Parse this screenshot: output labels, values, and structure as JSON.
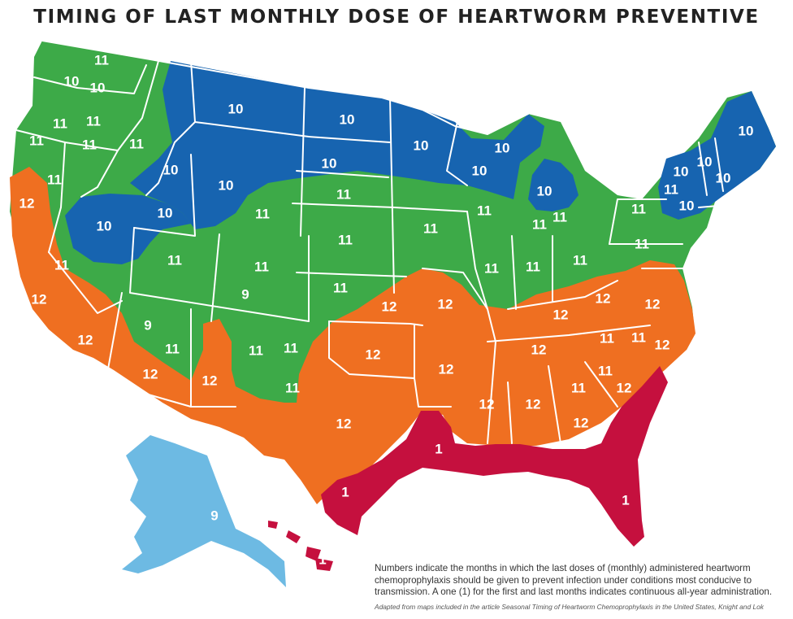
{
  "title": "TIMING OF LAST MONTHLY DOSE OF HEARTWORM PREVENTIVE",
  "colors": {
    "month_9": "#3daa48",
    "month_10": "#1764b0",
    "month_11": "#3daa48",
    "month_12": "#ef6f21",
    "month_1": "#c5103e",
    "alaska": "#6dbae3",
    "border": "#ffffff"
  },
  "labels": [
    "11",
    "10",
    "10",
    "10",
    "11",
    "11",
    "11",
    "10",
    "10",
    "10",
    "10",
    "10",
    "10",
    "10",
    "10",
    "10",
    "10",
    "10",
    "10",
    "10",
    "10",
    "12",
    "11",
    "11",
    "11",
    "11",
    "11",
    "11",
    "11",
    "11",
    "11",
    "11",
    "11",
    "11",
    "11",
    "11",
    "11",
    "9",
    "9",
    "11",
    "11",
    "11",
    "11",
    "11",
    "12",
    "12",
    "12",
    "12",
    "12",
    "12",
    "12",
    "12",
    "12",
    "12",
    "12",
    "12",
    "12",
    "12",
    "12",
    "12",
    "12",
    "11",
    "11",
    "11",
    "11",
    "12",
    "1",
    "1",
    "1",
    "9",
    "1"
  ],
  "caption": "Numbers indicate the months in which the last doses of (monthly) administered heartworm chemoprophylaxis should be given to prevent infection under conditions most conducive to transmission. A one (1) for the first and last months indicates continuous all-year administration.",
  "credit": "Adapted from maps included in the article Seasonal Timing of Heartworm Chemoprophylaxis in the United States, Knight and Lok"
}
